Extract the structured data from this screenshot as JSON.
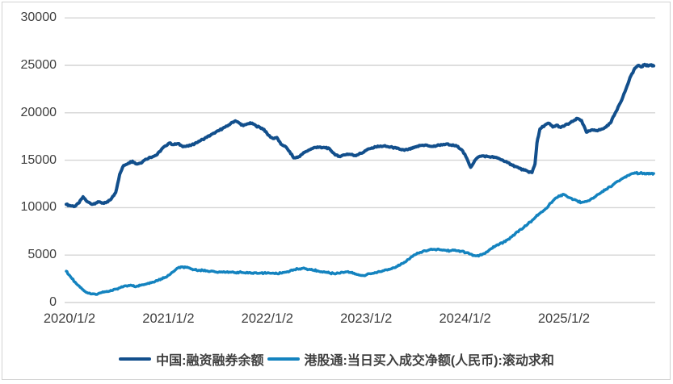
{
  "chart_data": {
    "type": "line",
    "title": "",
    "xlabel": "",
    "ylabel": "",
    "unit_note": "",
    "ylim": [
      0,
      30000
    ],
    "y_ticks": [
      0,
      5000,
      10000,
      15000,
      20000,
      25000,
      30000
    ],
    "y_tick_labels": [
      "0",
      "5000",
      "10000",
      "15000",
      "20000",
      "25000",
      "30000"
    ],
    "x_tick_labels": [
      "2020/1/2",
      "2021/1/2",
      "2022/1/2",
      "2023/1/2",
      "2024/1/2",
      "2025/1/2"
    ],
    "x_tick_years": [
      2020,
      2021,
      2022,
      2023,
      2024,
      2025
    ],
    "x_range_decimal_years": [
      2020.0,
      2025.94
    ],
    "grid": "horizontal",
    "legend_position": "bottom-center",
    "colors": {
      "grid": "#d4d4d4",
      "axis_text": "#3f3f3f",
      "background": "#ffffff",
      "frame_border": "#d2d2d2"
    },
    "series": [
      {
        "name": "中国:融资融券余额",
        "color": "#124f8c",
        "stroke_width": 4,
        "points": [
          [
            2020.0,
            10350
          ],
          [
            2020.04,
            10200
          ],
          [
            2020.09,
            10150
          ],
          [
            2020.13,
            10500
          ],
          [
            2020.17,
            11150
          ],
          [
            2020.21,
            10650
          ],
          [
            2020.26,
            10350
          ],
          [
            2020.3,
            10500
          ],
          [
            2020.34,
            10600
          ],
          [
            2020.38,
            10450
          ],
          [
            2020.42,
            10600
          ],
          [
            2020.46,
            11000
          ],
          [
            2020.5,
            11600
          ],
          [
            2020.54,
            13500
          ],
          [
            2020.58,
            14450
          ],
          [
            2020.63,
            14700
          ],
          [
            2020.67,
            14900
          ],
          [
            2020.71,
            14600
          ],
          [
            2020.75,
            14700
          ],
          [
            2020.79,
            15000
          ],
          [
            2020.84,
            15300
          ],
          [
            2020.88,
            15400
          ],
          [
            2020.92,
            15600
          ],
          [
            2020.96,
            16100
          ],
          [
            2021.0,
            16500
          ],
          [
            2021.04,
            16800
          ],
          [
            2021.09,
            16650
          ],
          [
            2021.13,
            16750
          ],
          [
            2021.17,
            16500
          ],
          [
            2021.21,
            16450
          ],
          [
            2021.26,
            16550
          ],
          [
            2021.3,
            16750
          ],
          [
            2021.34,
            17000
          ],
          [
            2021.38,
            17200
          ],
          [
            2021.42,
            17400
          ],
          [
            2021.46,
            17650
          ],
          [
            2021.5,
            17850
          ],
          [
            2021.54,
            18100
          ],
          [
            2021.58,
            18350
          ],
          [
            2021.63,
            18600
          ],
          [
            2021.67,
            18950
          ],
          [
            2021.71,
            19150
          ],
          [
            2021.75,
            18900
          ],
          [
            2021.79,
            18650
          ],
          [
            2021.84,
            18850
          ],
          [
            2021.88,
            18900
          ],
          [
            2021.92,
            18600
          ],
          [
            2021.96,
            18450
          ],
          [
            2022.0,
            18250
          ],
          [
            2022.04,
            17650
          ],
          [
            2022.09,
            17300
          ],
          [
            2022.13,
            17400
          ],
          [
            2022.17,
            16700
          ],
          [
            2022.21,
            16500
          ],
          [
            2022.26,
            15900
          ],
          [
            2022.3,
            15250
          ],
          [
            2022.34,
            15300
          ],
          [
            2022.38,
            15600
          ],
          [
            2022.42,
            15900
          ],
          [
            2022.46,
            16100
          ],
          [
            2022.5,
            16300
          ],
          [
            2022.54,
            16400
          ],
          [
            2022.58,
            16300
          ],
          [
            2022.63,
            16350
          ],
          [
            2022.67,
            16100
          ],
          [
            2022.71,
            15700
          ],
          [
            2022.75,
            15400
          ],
          [
            2022.79,
            15500
          ],
          [
            2022.84,
            15650
          ],
          [
            2022.88,
            15600
          ],
          [
            2022.92,
            15500
          ],
          [
            2022.96,
            15650
          ],
          [
            2023.0,
            15800
          ],
          [
            2023.04,
            16100
          ],
          [
            2023.09,
            16300
          ],
          [
            2023.13,
            16400
          ],
          [
            2023.17,
            16450
          ],
          [
            2023.21,
            16500
          ],
          [
            2023.26,
            16400
          ],
          [
            2023.3,
            16350
          ],
          [
            2023.34,
            16250
          ],
          [
            2023.38,
            16150
          ],
          [
            2023.42,
            16050
          ],
          [
            2023.46,
            16150
          ],
          [
            2023.5,
            16250
          ],
          [
            2023.54,
            16400
          ],
          [
            2023.58,
            16550
          ],
          [
            2023.63,
            16600
          ],
          [
            2023.67,
            16500
          ],
          [
            2023.71,
            16450
          ],
          [
            2023.75,
            16550
          ],
          [
            2023.79,
            16650
          ],
          [
            2023.84,
            16700
          ],
          [
            2023.88,
            16600
          ],
          [
            2023.92,
            16550
          ],
          [
            2023.96,
            16450
          ],
          [
            2024.0,
            16100
          ],
          [
            2024.04,
            15400
          ],
          [
            2024.09,
            14250
          ],
          [
            2024.13,
            14950
          ],
          [
            2024.17,
            15350
          ],
          [
            2024.21,
            15450
          ],
          [
            2024.26,
            15400
          ],
          [
            2024.3,
            15350
          ],
          [
            2024.34,
            15300
          ],
          [
            2024.38,
            15150
          ],
          [
            2024.42,
            14950
          ],
          [
            2024.46,
            14750
          ],
          [
            2024.5,
            14550
          ],
          [
            2024.54,
            14350
          ],
          [
            2024.58,
            14150
          ],
          [
            2024.63,
            13950
          ],
          [
            2024.67,
            13800
          ],
          [
            2024.71,
            13700
          ],
          [
            2024.74,
            14600
          ],
          [
            2024.76,
            16800
          ],
          [
            2024.79,
            18300
          ],
          [
            2024.84,
            18700
          ],
          [
            2024.88,
            18900
          ],
          [
            2024.92,
            18500
          ],
          [
            2024.96,
            18700
          ],
          [
            2025.0,
            18450
          ],
          [
            2025.04,
            18650
          ],
          [
            2025.09,
            18900
          ],
          [
            2025.13,
            19150
          ],
          [
            2025.17,
            19400
          ],
          [
            2025.21,
            19200
          ],
          [
            2025.26,
            17950
          ],
          [
            2025.3,
            18100
          ],
          [
            2025.34,
            18200
          ],
          [
            2025.38,
            18150
          ],
          [
            2025.42,
            18300
          ],
          [
            2025.46,
            18500
          ],
          [
            2025.5,
            18900
          ],
          [
            2025.54,
            19700
          ],
          [
            2025.58,
            20600
          ],
          [
            2025.63,
            21700
          ],
          [
            2025.67,
            22800
          ],
          [
            2025.71,
            23900
          ],
          [
            2025.75,
            24700
          ],
          [
            2025.79,
            25000
          ],
          [
            2025.82,
            24850
          ],
          [
            2025.85,
            25100
          ],
          [
            2025.88,
            24950
          ],
          [
            2025.91,
            25050
          ],
          [
            2025.94,
            24950
          ]
        ]
      },
      {
        "name": "港股通:当日买入成交净额(人民币):滚动求和",
        "color": "#1483bf",
        "stroke_width": 3.5,
        "points": [
          [
            2020.0,
            3300
          ],
          [
            2020.03,
            2900
          ],
          [
            2020.06,
            2500
          ],
          [
            2020.09,
            2150
          ],
          [
            2020.13,
            1750
          ],
          [
            2020.17,
            1350
          ],
          [
            2020.21,
            1050
          ],
          [
            2020.26,
            900
          ],
          [
            2020.3,
            850
          ],
          [
            2020.34,
            1000
          ],
          [
            2020.38,
            1100
          ],
          [
            2020.42,
            1150
          ],
          [
            2020.46,
            1250
          ],
          [
            2020.5,
            1400
          ],
          [
            2020.54,
            1550
          ],
          [
            2020.58,
            1700
          ],
          [
            2020.63,
            1800
          ],
          [
            2020.67,
            1750
          ],
          [
            2020.71,
            1700
          ],
          [
            2020.75,
            1800
          ],
          [
            2020.79,
            1900
          ],
          [
            2020.84,
            2000
          ],
          [
            2020.88,
            2150
          ],
          [
            2020.92,
            2300
          ],
          [
            2020.96,
            2500
          ],
          [
            2021.0,
            2650
          ],
          [
            2021.04,
            2900
          ],
          [
            2021.09,
            3300
          ],
          [
            2021.13,
            3650
          ],
          [
            2021.17,
            3750
          ],
          [
            2021.21,
            3700
          ],
          [
            2021.26,
            3550
          ],
          [
            2021.3,
            3450
          ],
          [
            2021.34,
            3400
          ],
          [
            2021.38,
            3400
          ],
          [
            2021.42,
            3350
          ],
          [
            2021.46,
            3300
          ],
          [
            2021.5,
            3250
          ],
          [
            2021.54,
            3200
          ],
          [
            2021.58,
            3200
          ],
          [
            2021.63,
            3250
          ],
          [
            2021.67,
            3200
          ],
          [
            2021.71,
            3150
          ],
          [
            2021.75,
            3200
          ],
          [
            2021.79,
            3150
          ],
          [
            2021.84,
            3100
          ],
          [
            2021.88,
            3100
          ],
          [
            2021.92,
            3150
          ],
          [
            2021.96,
            3100
          ],
          [
            2022.0,
            3100
          ],
          [
            2022.04,
            3150
          ],
          [
            2022.09,
            3100
          ],
          [
            2022.13,
            3050
          ],
          [
            2022.17,
            3100
          ],
          [
            2022.21,
            3200
          ],
          [
            2022.26,
            3300
          ],
          [
            2022.3,
            3450
          ],
          [
            2022.34,
            3550
          ],
          [
            2022.38,
            3600
          ],
          [
            2022.42,
            3550
          ],
          [
            2022.46,
            3500
          ],
          [
            2022.5,
            3400
          ],
          [
            2022.54,
            3350
          ],
          [
            2022.58,
            3250
          ],
          [
            2022.63,
            3200
          ],
          [
            2022.67,
            3100
          ],
          [
            2022.71,
            3050
          ],
          [
            2022.75,
            3100
          ],
          [
            2022.79,
            3200
          ],
          [
            2022.84,
            3250
          ],
          [
            2022.88,
            3150
          ],
          [
            2022.92,
            3000
          ],
          [
            2022.96,
            2900
          ],
          [
            2023.0,
            2850
          ],
          [
            2023.04,
            2950
          ],
          [
            2023.09,
            3050
          ],
          [
            2023.13,
            3150
          ],
          [
            2023.17,
            3250
          ],
          [
            2023.21,
            3350
          ],
          [
            2023.26,
            3500
          ],
          [
            2023.3,
            3650
          ],
          [
            2023.34,
            3800
          ],
          [
            2023.38,
            4000
          ],
          [
            2023.42,
            4250
          ],
          [
            2023.46,
            4550
          ],
          [
            2023.5,
            4850
          ],
          [
            2023.54,
            5100
          ],
          [
            2023.58,
            5300
          ],
          [
            2023.63,
            5450
          ],
          [
            2023.67,
            5550
          ],
          [
            2023.71,
            5600
          ],
          [
            2023.75,
            5600
          ],
          [
            2023.79,
            5550
          ],
          [
            2023.84,
            5500
          ],
          [
            2023.88,
            5450
          ],
          [
            2023.92,
            5500
          ],
          [
            2023.96,
            5450
          ],
          [
            2024.0,
            5400
          ],
          [
            2024.04,
            5250
          ],
          [
            2024.09,
            5100
          ],
          [
            2024.13,
            4950
          ],
          [
            2024.17,
            4900
          ],
          [
            2024.21,
            5100
          ],
          [
            2024.26,
            5350
          ],
          [
            2024.3,
            5700
          ],
          [
            2024.34,
            5950
          ],
          [
            2024.38,
            6150
          ],
          [
            2024.42,
            6350
          ],
          [
            2024.46,
            6600
          ],
          [
            2024.5,
            6900
          ],
          [
            2024.54,
            7250
          ],
          [
            2024.58,
            7600
          ],
          [
            2024.63,
            7950
          ],
          [
            2024.67,
            8300
          ],
          [
            2024.71,
            8650
          ],
          [
            2024.75,
            9050
          ],
          [
            2024.79,
            9400
          ],
          [
            2024.84,
            9800
          ],
          [
            2024.88,
            10250
          ],
          [
            2024.92,
            10700
          ],
          [
            2024.96,
            11050
          ],
          [
            2025.0,
            11300
          ],
          [
            2025.04,
            11350
          ],
          [
            2025.09,
            11050
          ],
          [
            2025.13,
            10850
          ],
          [
            2025.17,
            10700
          ],
          [
            2025.21,
            10550
          ],
          [
            2025.26,
            10650
          ],
          [
            2025.3,
            10850
          ],
          [
            2025.34,
            11100
          ],
          [
            2025.38,
            11400
          ],
          [
            2025.42,
            11700
          ],
          [
            2025.46,
            11950
          ],
          [
            2025.5,
            12200
          ],
          [
            2025.54,
            12500
          ],
          [
            2025.58,
            12800
          ],
          [
            2025.63,
            13100
          ],
          [
            2025.67,
            13350
          ],
          [
            2025.71,
            13550
          ],
          [
            2025.75,
            13680
          ],
          [
            2025.79,
            13600
          ],
          [
            2025.82,
            13650
          ],
          [
            2025.85,
            13550
          ],
          [
            2025.88,
            13620
          ],
          [
            2025.91,
            13580
          ],
          [
            2025.94,
            13600
          ]
        ]
      }
    ]
  },
  "legend": {
    "items": [
      {
        "label": "中国:融资融券余额",
        "color": "#124f8c"
      },
      {
        "label": "港股通:当日买入成交净额(人民币):滚动求和",
        "color": "#1483bf"
      }
    ]
  }
}
